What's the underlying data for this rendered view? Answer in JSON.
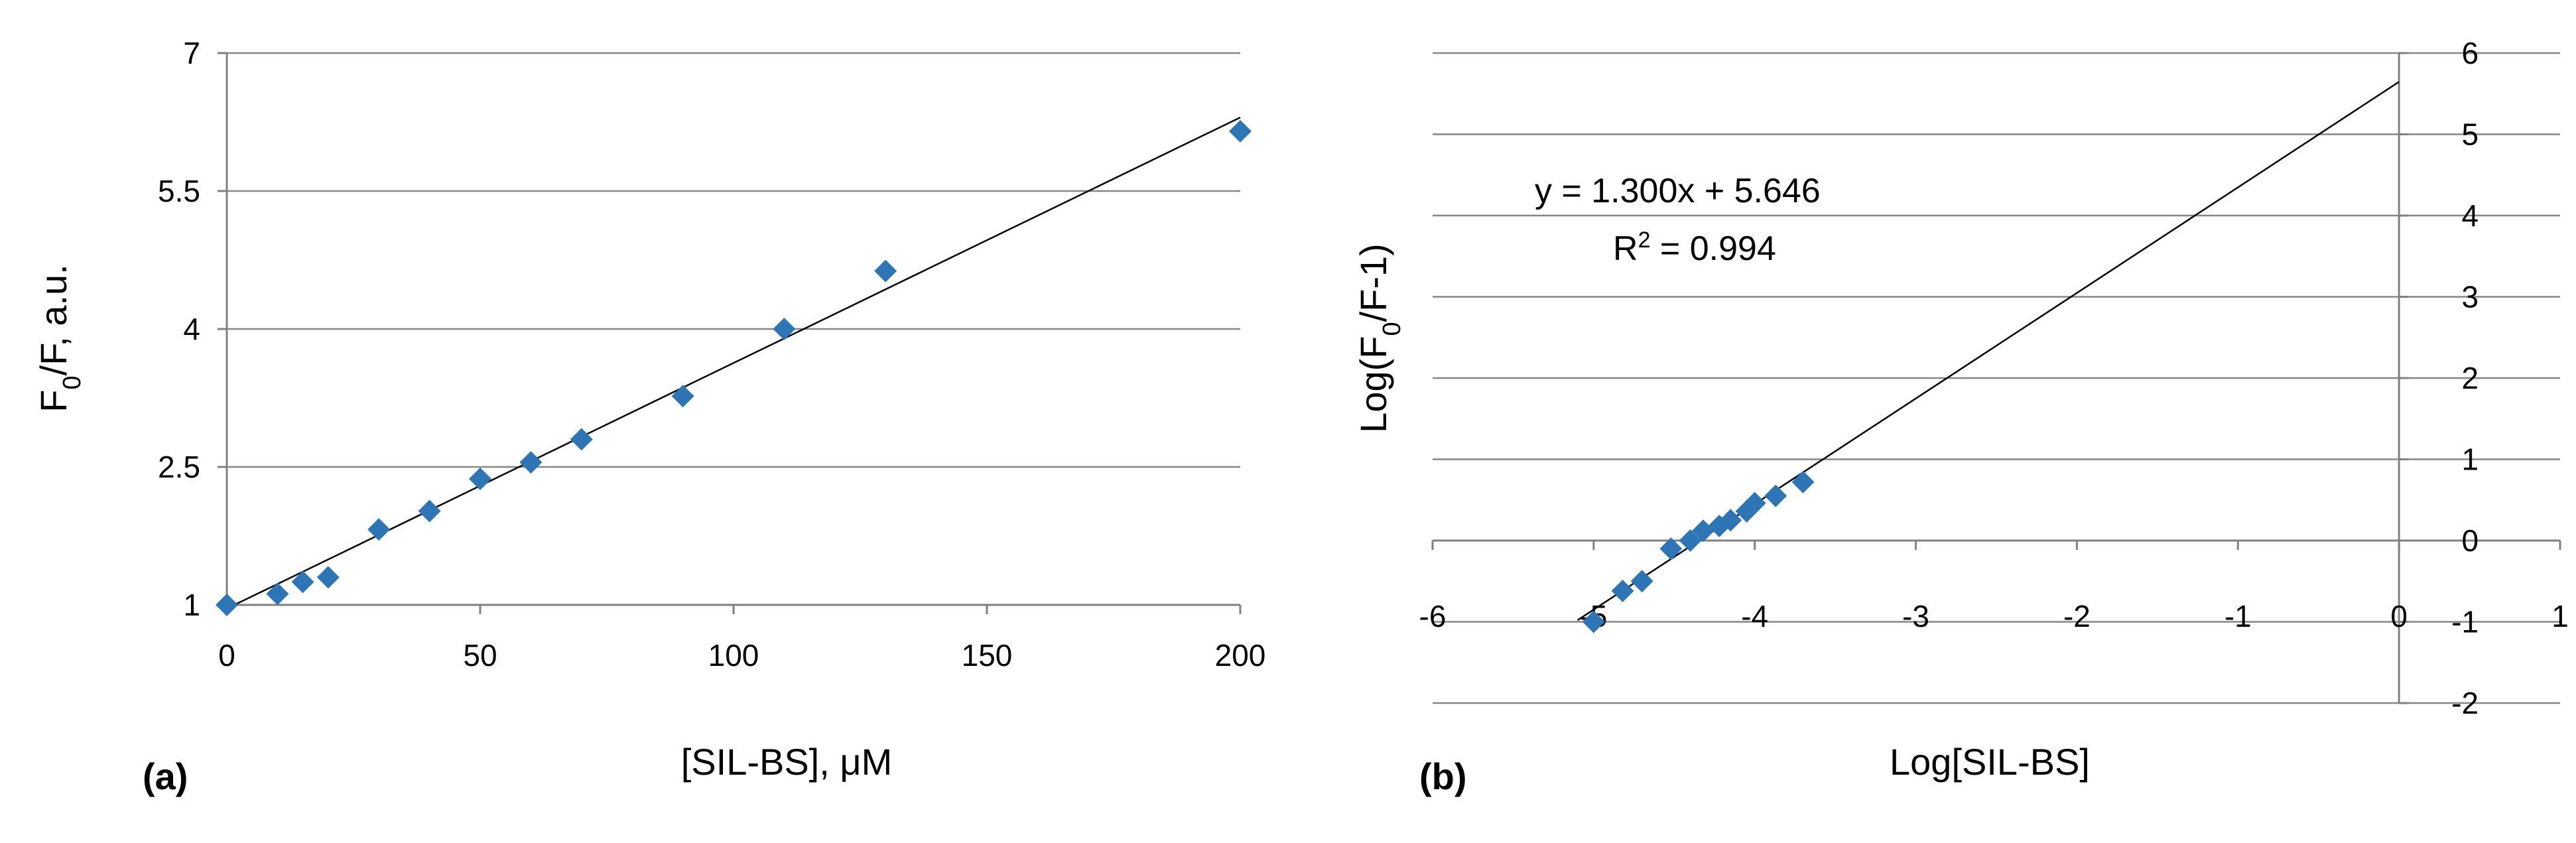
{
  "chart_data": [
    {
      "panel": "(a)",
      "type": "scatter",
      "xlabel": "[SIL-BS], μM",
      "ylabel_main": "F",
      "ylabel_sub": "0",
      "ylabel_rest": "/F, a.u.",
      "xlim": [
        0,
        200
      ],
      "ylim": [
        1,
        7
      ],
      "xticks": [
        0,
        50,
        100,
        150,
        200
      ],
      "yticks": [
        1,
        2.5,
        4,
        5.5,
        7
      ],
      "ytick_labels": [
        "1",
        "2.5",
        "4",
        "5.5",
        "7"
      ],
      "xtick_labels": [
        "0",
        "50",
        "100",
        "150",
        "200"
      ],
      "grid": "horizontal",
      "marker_color": "#2E75B6",
      "series": [
        {
          "name": "data",
          "x": [
            0,
            10,
            15,
            20,
            30,
            40,
            50,
            60,
            70,
            90,
            110,
            130,
            200
          ],
          "y": [
            1.0,
            1.12,
            1.25,
            1.3,
            1.82,
            2.02,
            2.37,
            2.55,
            2.8,
            3.27,
            4.0,
            4.63,
            6.15
          ]
        }
      ],
      "trendline": {
        "x": [
          0,
          200
        ],
        "y": [
          0.96,
          6.3
        ]
      }
    },
    {
      "panel": "(b)",
      "type": "scatter",
      "xlabel": "Log[SIL-BS]",
      "ylabel_main": "Log(F",
      "ylabel_sub": "0",
      "ylabel_rest": "/F-1)",
      "xlim": [
        -6,
        1
      ],
      "ylim": [
        -2,
        6
      ],
      "xticks": [
        -6,
        -5,
        -4,
        -3,
        -2,
        -1,
        0,
        1
      ],
      "xtick_labels": [
        "-6",
        "-5",
        "-4",
        "-3",
        "-2",
        "-1",
        "0",
        "1"
      ],
      "yticks": [
        -2,
        -1,
        0,
        1,
        2,
        3,
        4,
        5,
        6
      ],
      "ytick_labels": [
        "-2",
        "-1",
        "0",
        "1",
        "2",
        "3",
        "4",
        "5",
        "6"
      ],
      "grid": "horizontal",
      "marker_color": "#2E75B6",
      "equation": "y = 1.300x + 5.646",
      "r2_label": "R",
      "r2_sup": "2",
      "r2_value": " = 0.994",
      "series": [
        {
          "name": "data",
          "x": [
            -5.0,
            -4.82,
            -4.7,
            -4.52,
            -4.4,
            -4.32,
            -4.22,
            -4.15,
            -4.05,
            -4.0,
            -3.87,
            -3.7
          ],
          "y": [
            -1.0,
            -0.62,
            -0.5,
            -0.1,
            0.0,
            0.12,
            0.18,
            0.25,
            0.36,
            0.46,
            0.55,
            0.72
          ]
        }
      ],
      "trendline": {
        "x": [
          -5.1,
          0
        ],
        "y": [
          -0.98,
          5.646
        ]
      }
    }
  ]
}
